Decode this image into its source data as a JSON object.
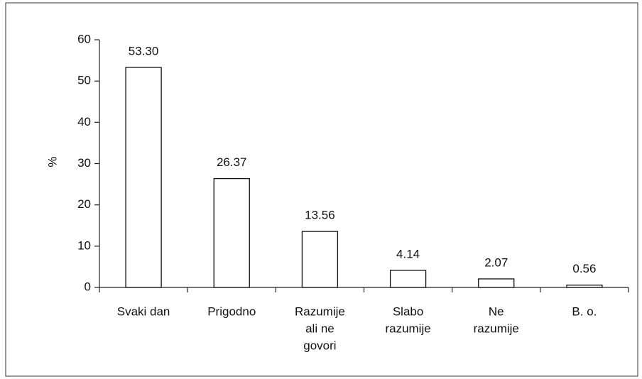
{
  "chart_data": {
    "type": "bar",
    "y_label": "%",
    "categories": [
      [
        "Svaki dan"
      ],
      [
        "Prigodno"
      ],
      [
        "Razumije",
        "ali ne",
        "govori"
      ],
      [
        "Slabo",
        "razumije"
      ],
      [
        "Ne",
        "razumije"
      ],
      [
        "B. o."
      ]
    ],
    "values": [
      53.3,
      26.37,
      13.56,
      4.14,
      2.07,
      0.56
    ],
    "value_labels": [
      "53.30",
      "26.37",
      "13.56",
      "4.14",
      "2.07",
      "0.56"
    ],
    "color": "#ffffff",
    "ylim": [
      0,
      60
    ],
    "yticks": [
      0,
      10,
      20,
      30,
      40,
      50,
      60
    ],
    "grid": false
  }
}
